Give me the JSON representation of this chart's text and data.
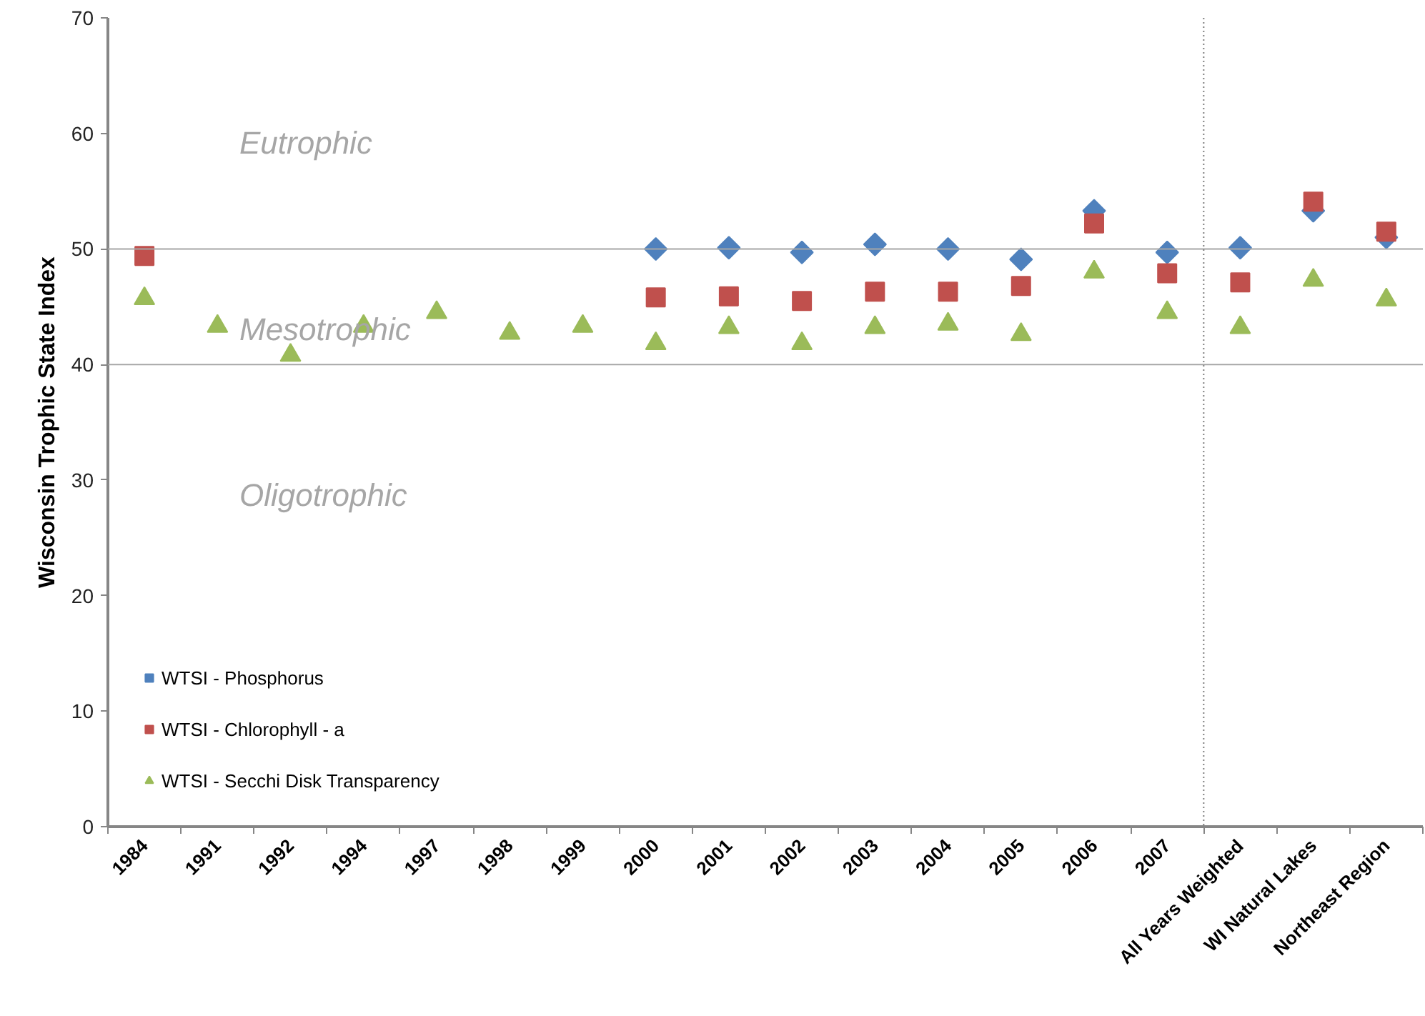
{
  "chart_data": {
    "type": "scatter",
    "ylabel": "Wisconsin Trophic State Index",
    "categories": [
      "1984",
      "1991",
      "1992",
      "1994",
      "1997",
      "1998",
      "1999",
      "2000",
      "2001",
      "2002",
      "2003",
      "2004",
      "2005",
      "2006",
      "2007",
      "All Years Weighted",
      "WI Natural Lakes",
      "Northeast Region"
    ],
    "series": [
      {
        "name": "WTSI - Phosphorus",
        "color": "#4f81bd",
        "marker": "diamond",
        "values": [
          null,
          null,
          null,
          null,
          null,
          null,
          null,
          50.0,
          50.1,
          49.7,
          50.4,
          50.0,
          49.1,
          53.3,
          49.7,
          50.1,
          53.3,
          51.0
        ]
      },
      {
        "name": "WTSI - Chlorophyll - a",
        "color": "#c0504d",
        "marker": "square",
        "values": [
          49.4,
          null,
          null,
          null,
          null,
          null,
          null,
          45.8,
          45.9,
          45.5,
          46.3,
          46.3,
          46.8,
          52.2,
          47.9,
          47.1,
          54.1,
          51.5
        ]
      },
      {
        "name": "WTSI - Secchi Disk Transparency",
        "color": "#9bbb59",
        "marker": "triangle",
        "values": [
          45.7,
          43.3,
          40.8,
          43.3,
          44.5,
          42.7,
          43.3,
          41.8,
          43.2,
          41.8,
          43.2,
          43.5,
          42.6,
          48.0,
          44.5,
          43.2,
          47.3,
          45.6
        ]
      }
    ],
    "ylim": [
      0,
      70
    ],
    "yticks": [
      0,
      10,
      20,
      30,
      40,
      50,
      60,
      70
    ],
    "grid": false,
    "legend": "bottom left",
    "ref_lines": [
      {
        "axis": "y",
        "value": 40,
        "color": "#a6a6a6",
        "line_style": "solid"
      },
      {
        "axis": "y",
        "value": 50,
        "color": "#a6a6a6",
        "line_style": "solid"
      },
      {
        "axis": "x",
        "value": "All Years Weighted",
        "color": "#7f7f7f",
        "line_style": "dotted"
      }
    ],
    "annotations": [
      "Eutrophic",
      "Mesotrophic",
      "Oligotrophic"
    ]
  }
}
